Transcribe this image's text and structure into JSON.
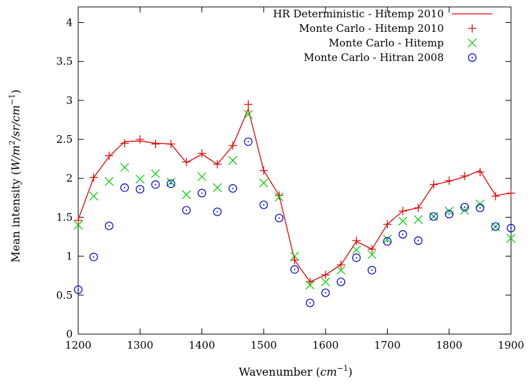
{
  "chart_data": {
    "type": "line",
    "xlabel": "Wavenumber",
    "xlabel_unit": "cm",
    "xlabel_unit_exp": "−1",
    "ylabel": "Mean intensity",
    "ylabel_unit": "W/m",
    "ylabel_unit_exp1": "2",
    "ylabel_unit_mid": "/sr/cm",
    "ylabel_unit_exp2": "−1",
    "xlim": [
      1200,
      1900
    ],
    "ylim": [
      0,
      4.2
    ],
    "x_ticks": [
      1200,
      1300,
      1400,
      1500,
      1600,
      1700,
      1800,
      1900
    ],
    "y_ticks": [
      0,
      0.5,
      1,
      1.5,
      2,
      2.5,
      3,
      3.5,
      4
    ],
    "y_tick_labels": [
      "0",
      "0.5",
      "1",
      "1.5",
      "2",
      "2.5",
      "3",
      "3.5",
      "4"
    ],
    "legend_position": "top-right",
    "grid": false,
    "x": [
      1200,
      1225,
      1250,
      1275,
      1300,
      1325,
      1350,
      1375,
      1400,
      1425,
      1450,
      1475,
      1500,
      1525,
      1550,
      1575,
      1600,
      1625,
      1650,
      1675,
      1700,
      1725,
      1750,
      1775,
      1800,
      1825,
      1850,
      1875,
      1900
    ],
    "series": [
      {
        "name": "HR Deterministic - Hitemp 2010",
        "style": "line",
        "color": "#e00000",
        "values": [
          1.47,
          2.01,
          2.28,
          2.47,
          2.48,
          2.45,
          2.44,
          2.2,
          2.31,
          2.18,
          2.42,
          2.89,
          2.1,
          1.78,
          0.95,
          0.67,
          0.76,
          0.89,
          1.19,
          1.09,
          1.41,
          1.58,
          1.62,
          1.92,
          1.96,
          2.02,
          2.1,
          1.78,
          1.81
        ]
      },
      {
        "name": "Monte Carlo - Hitemp 2010",
        "style": "plus",
        "color": "#e00000",
        "values": [
          1.46,
          2.01,
          2.29,
          2.45,
          2.5,
          2.44,
          2.44,
          2.21,
          2.32,
          2.18,
          2.42,
          2.95,
          2.1,
          1.78,
          0.95,
          0.67,
          0.76,
          0.89,
          1.2,
          1.09,
          1.41,
          1.58,
          1.62,
          1.92,
          1.97,
          2.03,
          2.08,
          1.77,
          1.81
        ]
      },
      {
        "name": "Monte Carlo - Hitemp",
        "style": "cross",
        "color": "#00cc00",
        "values": [
          1.4,
          1.77,
          1.96,
          2.14,
          1.99,
          2.06,
          1.95,
          1.79,
          2.02,
          1.88,
          2.23,
          2.82,
          1.94,
          1.76,
          1.0,
          0.63,
          0.67,
          0.82,
          1.08,
          1.02,
          1.22,
          1.45,
          1.47,
          1.51,
          1.58,
          1.59,
          1.67,
          1.38,
          1.23
        ]
      },
      {
        "name": "Monte Carlo - Hitran 2008",
        "style": "circle",
        "color": "#0000dd",
        "values": [
          0.57,
          0.99,
          1.39,
          1.88,
          1.86,
          1.92,
          1.93,
          1.59,
          1.81,
          1.57,
          1.87,
          2.47,
          1.66,
          1.49,
          0.83,
          0.4,
          0.53,
          0.67,
          0.98,
          0.82,
          1.19,
          1.28,
          1.2,
          1.51,
          1.54,
          1.63,
          1.62,
          1.38,
          1.36
        ]
      }
    ]
  }
}
